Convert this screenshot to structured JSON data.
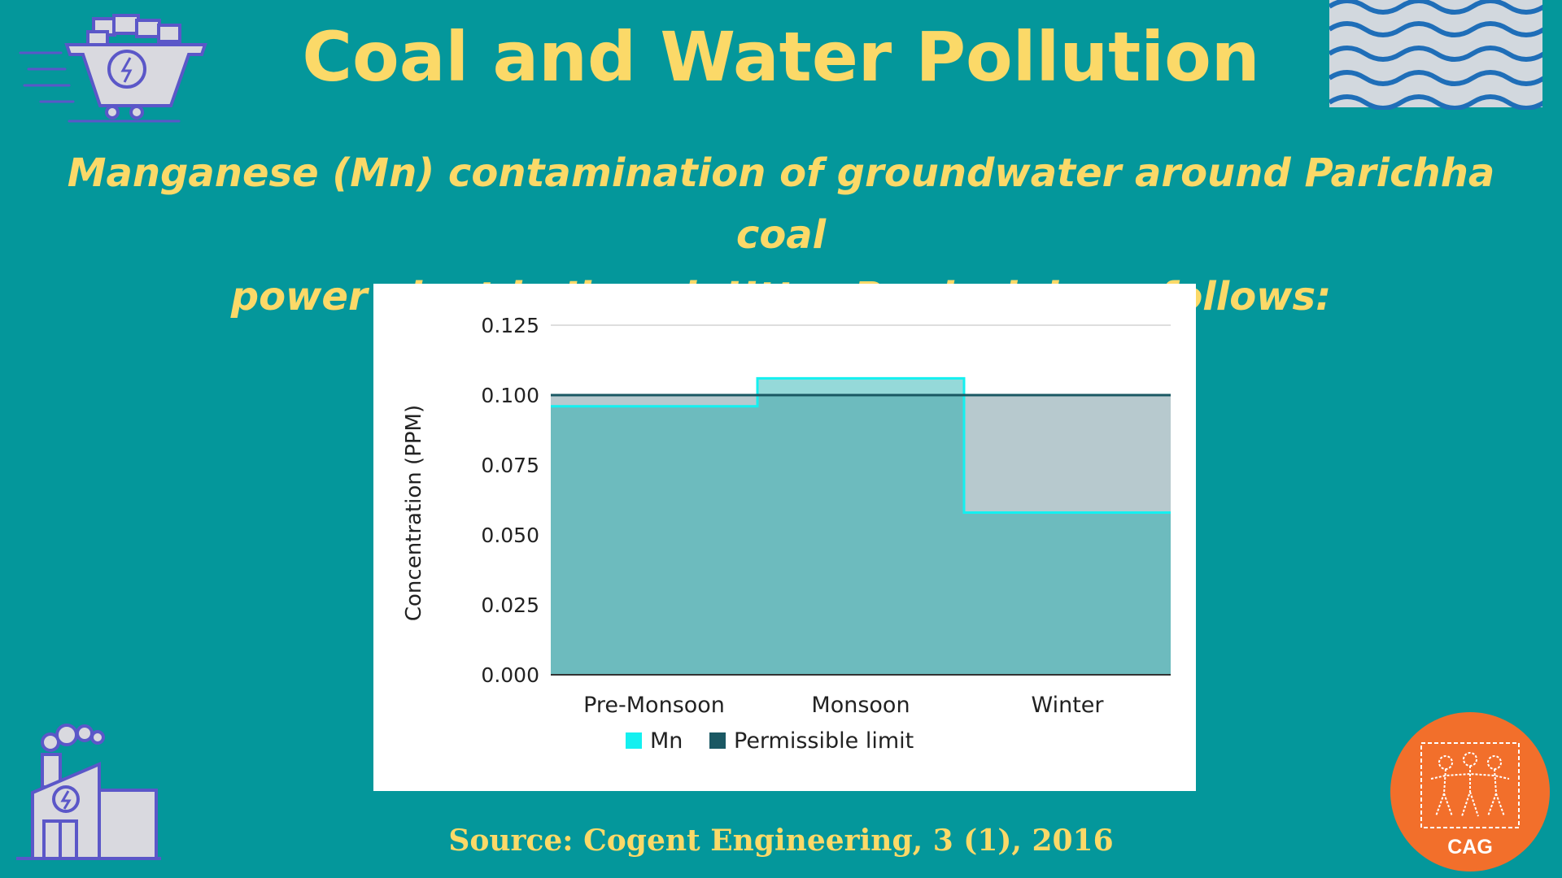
{
  "title": "Coal and Water Pollution",
  "subtitle_line1": "Manganese (Mn) contamination of groundwater around Parichha coal",
  "subtitle_line2": "power plant in Jhansi, Uttar Pradesh is as follows:",
  "source": "Source: Cogent Engineering, 3 (1), 2016",
  "logo": {
    "text": "CAG",
    "color": "#f26f2b"
  },
  "icons": [
    "coal-cart-icon",
    "water-waves-icon",
    "power-plant-icon",
    "people-logo-icon"
  ],
  "colors": {
    "background": "#04979b",
    "heading": "#fbd968",
    "mn": "#14f0f0",
    "permissible_limit": "#1a5863"
  },
  "chart_data": {
    "type": "area",
    "step": true,
    "categories": [
      "Pre-Monsoon",
      "Monsoon",
      "Winter"
    ],
    "series": [
      {
        "name": "Mn",
        "values": [
          0.096,
          0.106,
          0.058
        ],
        "color": "#14f0f0"
      },
      {
        "name": "Permissible limit",
        "values": [
          0.1,
          0.1,
          0.1
        ],
        "color": "#1a5863"
      }
    ],
    "ylabel": "Concentration (PPM)",
    "xlabel": "",
    "ylim": [
      0,
      0.125
    ],
    "yticks": [
      "0.000",
      "0.025",
      "0.050",
      "0.075",
      "0.100",
      "0.125"
    ],
    "grid": true,
    "legend": "bottom-center"
  }
}
